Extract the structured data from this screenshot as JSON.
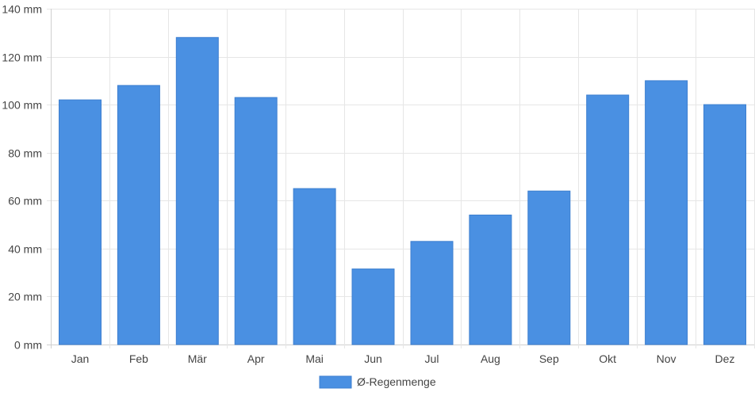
{
  "chart_data": {
    "type": "bar",
    "categories": [
      "Jan",
      "Feb",
      "Mär",
      "Apr",
      "Mai",
      "Jun",
      "Jul",
      "Aug",
      "Sep",
      "Okt",
      "Nov",
      "Dez"
    ],
    "series": [
      {
        "name": "Ø-Regenmenge",
        "values": [
          102,
          108,
          128,
          103,
          65,
          31.5,
          43,
          54,
          64,
          104,
          110,
          100
        ],
        "color": "#4a90e2"
      }
    ],
    "yunit": "mm",
    "ylim": [
      0,
      140
    ],
    "yticks": [
      0,
      20,
      40,
      60,
      80,
      100,
      120,
      140
    ],
    "grid": true,
    "legend": "bottom-center",
    "title": "",
    "xlabel": "",
    "ylabel": ""
  }
}
